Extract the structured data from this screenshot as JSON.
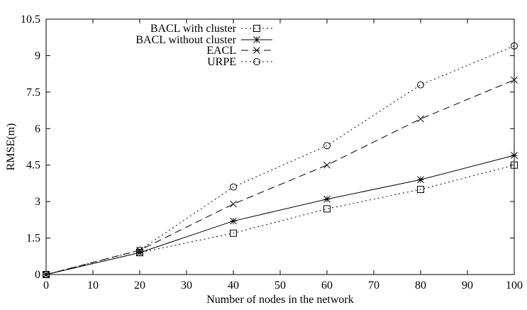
{
  "chart_data": {
    "type": "line",
    "xlabel": "Number of nodes in the network",
    "ylabel": "RMSE(m)",
    "xlim": [
      0,
      100
    ],
    "ylim": [
      0,
      10.5
    ],
    "xticks": [
      "0",
      "10",
      "20",
      "30",
      "40",
      "50",
      "60",
      "70",
      "80",
      "90",
      "100"
    ],
    "yticks": [
      "0",
      "1.5",
      "3",
      "4.5",
      "6",
      "7.5",
      "9",
      "10.5"
    ],
    "grid": false,
    "legend_position": "top-left",
    "series": [
      {
        "name": "BACL with cluster",
        "marker": "square",
        "line_style": "dotted",
        "x": [
          0,
          20,
          40,
          60,
          80,
          100
        ],
        "y": [
          0,
          0.9,
          1.7,
          2.7,
          3.5,
          4.5
        ]
      },
      {
        "name": "BACL without cluster",
        "marker": "asterisk",
        "line_style": "solid",
        "x": [
          0,
          20,
          40,
          60,
          80,
          100
        ],
        "y": [
          0,
          0.9,
          2.2,
          3.1,
          3.9,
          4.9
        ]
      },
      {
        "name": "EACL",
        "marker": "cross",
        "line_style": "dashed",
        "x": [
          0,
          20,
          40,
          60,
          80,
          100
        ],
        "y": [
          0,
          1.0,
          2.9,
          4.5,
          6.4,
          8.0
        ]
      },
      {
        "name": "URPE",
        "marker": "circle",
        "line_style": "dotted",
        "x": [
          0,
          20,
          40,
          60,
          80,
          100
        ],
        "y": [
          0,
          1.0,
          3.6,
          5.3,
          7.8,
          9.4
        ]
      }
    ]
  }
}
